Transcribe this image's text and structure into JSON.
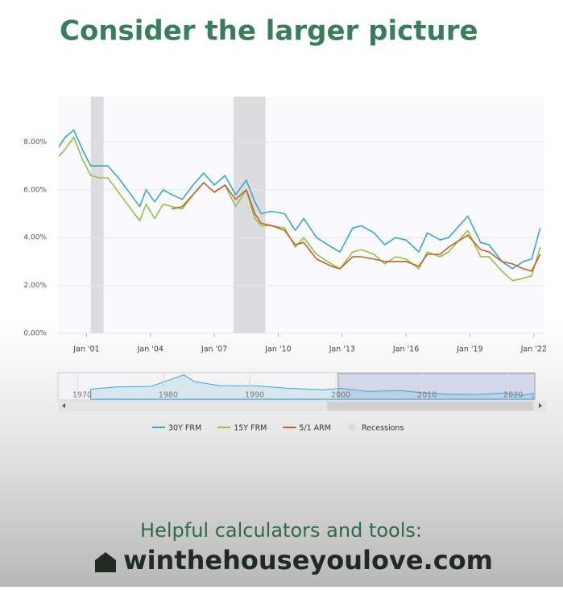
{
  "title": "Consider the larger picture",
  "chart_data": {
    "type": "line",
    "x": [
      1999.7,
      2000.0,
      2000.4,
      2000.8,
      2001.2,
      2001.6,
      2002.0,
      2002.5,
      2003.0,
      2003.5,
      2003.8,
      2004.2,
      2004.6,
      2005.0,
      2005.5,
      2006.0,
      2006.5,
      2007.0,
      2007.5,
      2008.0,
      2008.5,
      2008.9,
      2009.2,
      2009.7,
      2010.3,
      2010.8,
      2011.2,
      2011.8,
      2012.5,
      2012.9,
      2013.5,
      2013.9,
      2014.5,
      2015.0,
      2015.5,
      2016.0,
      2016.6,
      2017.0,
      2017.6,
      2018.0,
      2018.9,
      2019.5,
      2019.9,
      2020.5,
      2021.0,
      2021.5,
      2021.9,
      2022.3
    ],
    "series": [
      {
        "name": "30Y FRM",
        "color": "#3aa6cf",
        "values": [
          7.8,
          8.2,
          8.5,
          7.7,
          7.0,
          7.0,
          7.0,
          6.5,
          5.9,
          5.3,
          6.0,
          5.5,
          6.0,
          5.8,
          5.6,
          6.2,
          6.7,
          6.2,
          6.6,
          5.8,
          6.4,
          5.5,
          5.0,
          5.1,
          5.0,
          4.3,
          4.8,
          4.0,
          3.6,
          3.4,
          4.4,
          4.5,
          4.2,
          3.7,
          4.0,
          3.9,
          3.4,
          4.2,
          3.9,
          4.0,
          4.9,
          3.8,
          3.7,
          3.0,
          2.7,
          3.0,
          3.1,
          4.4
        ]
      },
      {
        "name": "15Y FRM",
        "color": "#8fc24a",
        "values": [
          7.4,
          7.7,
          8.2,
          7.3,
          6.6,
          6.5,
          6.5,
          5.9,
          5.3,
          4.7,
          5.4,
          4.8,
          5.4,
          5.3,
          5.2,
          5.8,
          6.3,
          5.9,
          6.2,
          5.3,
          6.0,
          4.8,
          4.5,
          4.5,
          4.4,
          3.6,
          4.0,
          3.3,
          2.9,
          2.7,
          3.4,
          3.5,
          3.3,
          2.9,
          3.2,
          3.1,
          2.7,
          3.4,
          3.2,
          3.4,
          4.3,
          3.2,
          3.2,
          2.6,
          2.2,
          2.3,
          2.4,
          3.6
        ]
      },
      {
        "name": "5/1 ARM",
        "color": "#c0622b",
        "values": [
          null,
          null,
          null,
          null,
          null,
          null,
          null,
          null,
          null,
          null,
          null,
          null,
          null,
          5.2,
          5.3,
          5.8,
          6.3,
          5.9,
          6.2,
          5.6,
          6.0,
          5.0,
          4.6,
          4.5,
          4.3,
          3.7,
          3.8,
          3.1,
          2.8,
          2.7,
          3.2,
          3.2,
          3.1,
          3.0,
          3.0,
          3.0,
          2.8,
          3.3,
          3.3,
          3.6,
          4.1,
          3.5,
          3.4,
          3.0,
          2.9,
          2.7,
          2.6,
          3.3
        ]
      }
    ],
    "recessions": {
      "name": "Recessions",
      "color": "#dcdcde",
      "ranges": [
        [
          2001.2,
          2001.8
        ],
        [
          2007.9,
          2009.4
        ]
      ]
    },
    "xlim": [
      1999.66,
      2022.5
    ],
    "xticks": [
      {
        "value": 2001,
        "label": "Jan '01"
      },
      {
        "value": 2004,
        "label": "Jan '04"
      },
      {
        "value": 2007,
        "label": "Jan '07"
      },
      {
        "value": 2010,
        "label": "Jan '10"
      },
      {
        "value": 2013,
        "label": "Jan '13"
      },
      {
        "value": 2016,
        "label": "Jan '16"
      },
      {
        "value": 2019,
        "label": "Jan '19"
      },
      {
        "value": 2022,
        "label": "Jan '22"
      }
    ],
    "ylim": [
      0,
      9.9
    ],
    "yticks": [
      {
        "value": 0,
        "label": "0.00%"
      },
      {
        "value": 2,
        "label": "2.00%"
      },
      {
        "value": 4,
        "label": "4.00%"
      },
      {
        "value": 6,
        "label": "6.00%"
      },
      {
        "value": 8,
        "label": "8.00%"
      }
    ],
    "grid": true,
    "navigator": {
      "x": [
        1971,
        1974,
        1978,
        1981.8,
        1983,
        1986,
        1990,
        1994,
        1998,
        2000,
        2003,
        2007,
        2010,
        2013,
        2016,
        2019,
        2021,
        2022.3
      ],
      "values": [
        7.5,
        9,
        9.5,
        18,
        13,
        10,
        10,
        8,
        7,
        8,
        5.8,
        6.3,
        4.5,
        3.5,
        3.6,
        4.5,
        2.8,
        4.4
      ],
      "xlim": [
        1967.2,
        2022.5
      ],
      "ylim": [
        0,
        19
      ],
      "xticks": [
        1970,
        1980,
        1990,
        2000,
        2010,
        2020
      ],
      "selection": [
        1999.7,
        2022.5
      ]
    }
  },
  "footer": {
    "tagline": "Helpful calculators and tools:",
    "site": "winthehouseyoulove.com"
  }
}
